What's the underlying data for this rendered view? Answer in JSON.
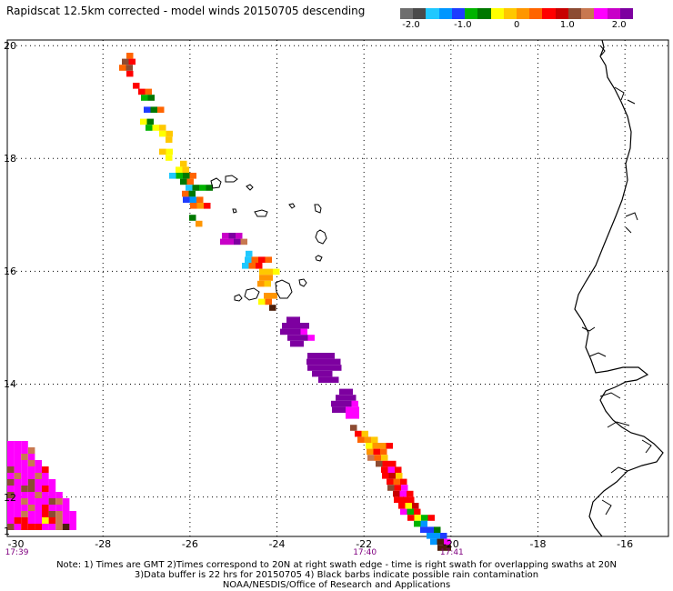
{
  "title": "Rapidscat 12.5km corrected - model winds 20150705 descending",
  "colorbar": {
    "colors": [
      "#6e6e6e",
      "#4a4a4a",
      "#1fc8ff",
      "#0096ff",
      "#1e3cff",
      "#00b400",
      "#007800",
      "#ffff00",
      "#ffc800",
      "#ff9600",
      "#ff6400",
      "#ff0000",
      "#c80000",
      "#8c4b32",
      "#c87850",
      "#ff00ff",
      "#c800c8",
      "#7d00a0"
    ],
    "labels": [
      {
        "text": "-2.0",
        "value": -2.0
      },
      {
        "text": "-1.0",
        "value": -1.0
      },
      {
        "text": "0",
        "value": 0
      },
      {
        "text": "1.0",
        "value": 1.0
      },
      {
        "text": "2.0",
        "value": 2.0
      }
    ]
  },
  "axes": {
    "lon_labels": [
      "-30",
      "-28",
      "-26",
      "-24",
      "-22",
      "-20",
      "-18",
      "-16"
    ],
    "lat_labels": [
      "20",
      "18",
      "16",
      "14",
      "12"
    ],
    "lat_bottom_label": "1"
  },
  "times": [
    {
      "text": "17:39",
      "lon": -30
    },
    {
      "text": "17:40",
      "lon": -22
    },
    {
      "text": "17:41",
      "lon": -20
    }
  ],
  "notes": [
    "Note: 1) Times are GMT 2)Times correspond to 20N at right swath edge - time is right swath for overlapping swaths at 20N",
    "3)Data buffer is 22 hrs for 20150705 4) Black barbs indicate possible rain contamination",
    "NOAA/NESDIS/Office of Research and Applications"
  ]
}
